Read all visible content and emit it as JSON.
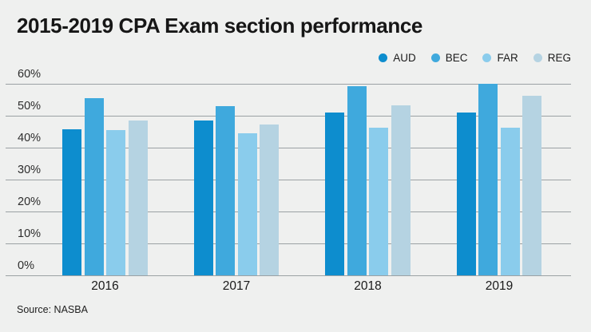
{
  "page": {
    "background": "#eff0ef",
    "gridline_color": "#9ba1a4"
  },
  "chart_data": {
    "type": "bar",
    "title": "2015-2019 CPA Exam section performance",
    "source": "Source: NASBA",
    "categories": [
      "2016",
      "2017",
      "2018",
      "2019"
    ],
    "series": [
      {
        "name": "AUD",
        "color": "#0d8dce",
        "values": [
          45.86,
          48.59,
          50.97,
          51.01
        ]
      },
      {
        "name": "BEC",
        "color": "#3fa9dd",
        "values": [
          55.41,
          52.99,
          59.35,
          59.98
        ]
      },
      {
        "name": "FAR",
        "color": "#8accec",
        "values": [
          45.55,
          44.42,
          46.22,
          46.31
        ]
      },
      {
        "name": "REG",
        "color": "#b5d3e2",
        "values": [
          48.48,
          47.24,
          53.16,
          56.34
        ]
      }
    ],
    "xlabel": "",
    "ylabel": "",
    "ylim": [
      0,
      60
    ],
    "ytick_step": 10,
    "ytick_labels": [
      "0%",
      "10%",
      "20%",
      "30%",
      "40%",
      "50%",
      "60%"
    ],
    "grid": true,
    "legend_position": "top-right"
  }
}
